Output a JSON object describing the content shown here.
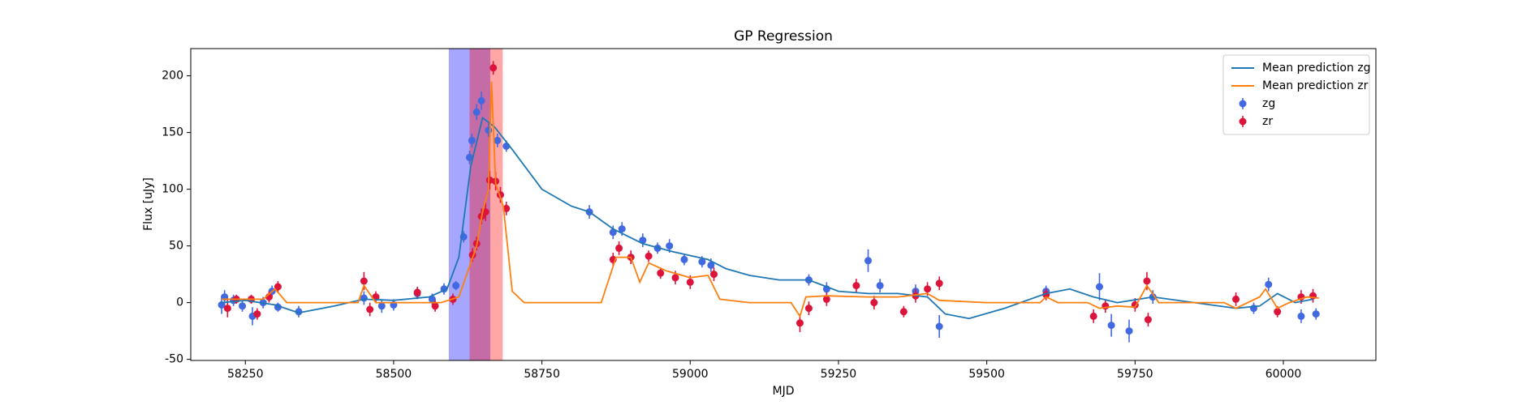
{
  "chart_data": {
    "type": "line",
    "title": "GP Regression",
    "x_label": "MJD",
    "y_label": "Flux [uJy]",
    "xlim": [
      58158,
      60156
    ],
    "ylim": [
      -51,
      224
    ],
    "xticks": [
      58250,
      58500,
      58750,
      59000,
      59250,
      59500,
      59750,
      60000
    ],
    "yticks": [
      -50,
      0,
      50,
      100,
      150,
      200
    ],
    "legend": "upper right",
    "spans": [
      {
        "x": [
          58593,
          58663
        ],
        "color": "#0000ff"
      },
      {
        "x": [
          58628,
          58684
        ],
        "color": "#ff0000"
      }
    ],
    "series": [
      {
        "name": "Mean prediction zg",
        "color": "#1f77b4",
        "kind": "line",
        "x": [
          58210,
          58250,
          58300,
          58340,
          58400,
          58450,
          58500,
          58560,
          58590,
          58610,
          58630,
          58650,
          58670,
          58700,
          58750,
          58800,
          58830,
          58870,
          58920,
          58970,
          59030,
          59060,
          59100,
          59150,
          59200,
          59250,
          59300,
          59350,
          59400,
          59430,
          59470,
          59530,
          59600,
          59640,
          59680,
          59720,
          59780,
          59850,
          59920,
          59960,
          59990,
          60020,
          60050
        ],
        "values": [
          0,
          2,
          -2,
          -9,
          -3,
          3,
          2,
          5,
          12,
          40,
          120,
          163,
          155,
          135,
          100,
          85,
          80,
          65,
          52,
          45,
          38,
          30,
          24,
          20,
          20,
          10,
          8,
          8,
          5,
          -10,
          -14,
          -5,
          8,
          12,
          5,
          0,
          5,
          0,
          -5,
          -3,
          8,
          0,
          3
        ]
      },
      {
        "name": "Mean prediction zr",
        "color": "#ff7f0e",
        "kind": "line",
        "x": [
          58210,
          58280,
          58300,
          58320,
          58440,
          58450,
          58470,
          58580,
          58610,
          58640,
          58650,
          58660,
          58665,
          58672,
          58685,
          58700,
          58720,
          58850,
          58875,
          58900,
          58915,
          58930,
          58960,
          59000,
          59030,
          59050,
          59100,
          59170,
          59185,
          59195,
          59230,
          59300,
          59350,
          59400,
          59420,
          59500,
          59590,
          59600,
          59620,
          59670,
          59690,
          59720,
          59750,
          59770,
          59790,
          59900,
          59920,
          59960,
          59970,
          59990,
          60010,
          60040,
          60060
        ],
        "values": [
          3,
          3,
          12,
          0,
          0,
          15,
          0,
          0,
          5,
          50,
          80,
          100,
          195,
          105,
          85,
          10,
          0,
          0,
          40,
          40,
          18,
          35,
          28,
          22,
          24,
          3,
          0,
          0,
          -12,
          5,
          6,
          5,
          5,
          8,
          2,
          0,
          0,
          5,
          0,
          0,
          -5,
          -3,
          -4,
          15,
          0,
          0,
          -5,
          5,
          12,
          -5,
          0,
          5,
          4
        ]
      },
      {
        "name": "zg",
        "color": "#4169e1",
        "kind": "errorbar",
        "x": [
          58210,
          58215,
          58230,
          58245,
          58262,
          58280,
          58295,
          58305,
          58340,
          58450,
          58480,
          58500,
          58540,
          58565,
          58585,
          58605,
          58618,
          58628,
          58632,
          58640,
          58648,
          58660,
          58675,
          58690,
          58830,
          58870,
          58885,
          58920,
          58945,
          58965,
          58990,
          59020,
          59035,
          59200,
          59230,
          59300,
          59320,
          59380,
          59420,
          59600,
          59690,
          59710,
          59740,
          59780,
          59950,
          59975,
          60030,
          60055
        ],
        "values": [
          -2,
          5,
          2,
          -3,
          -12,
          0,
          10,
          -4,
          -8,
          4,
          -3,
          -2,
          8,
          3,
          12,
          15,
          58,
          128,
          143,
          168,
          178,
          152,
          143,
          138,
          80,
          62,
          65,
          55,
          48,
          50,
          38,
          36,
          33,
          20,
          12,
          37,
          15,
          10,
          -21,
          10,
          14,
          -20,
          -25,
          5,
          -5,
          16,
          -12,
          -10
        ],
        "errors": [
          8,
          6,
          5,
          5,
          8,
          5,
          5,
          4,
          5,
          6,
          6,
          5,
          5,
          5,
          5,
          4,
          5,
          6,
          6,
          7,
          8,
          6,
          6,
          5,
          6,
          6,
          6,
          6,
          5,
          6,
          5,
          5,
          6,
          5,
          6,
          10,
          6,
          6,
          10,
          5,
          12,
          10,
          10,
          6,
          5,
          6,
          6,
          5
        ]
      },
      {
        "name": "zr",
        "color": "#dc143c",
        "kind": "errorbar",
        "x": [
          58220,
          58235,
          58260,
          58270,
          58290,
          58305,
          58450,
          58460,
          58470,
          58540,
          58570,
          58600,
          58633,
          58640,
          58648,
          58655,
          58662,
          58668,
          58672,
          58680,
          58690,
          58870,
          58880,
          58900,
          58930,
          58950,
          58975,
          59000,
          59040,
          59185,
          59200,
          59230,
          59280,
          59310,
          59360,
          59380,
          59400,
          59420,
          59600,
          59680,
          59700,
          59750,
          59770,
          59772,
          59920,
          59990,
          60030,
          60050
        ],
        "values": [
          -5,
          3,
          3,
          -10,
          5,
          14,
          19,
          -6,
          5,
          9,
          -3,
          3,
          42,
          52,
          76,
          80,
          108,
          207,
          107,
          95,
          83,
          38,
          48,
          40,
          41,
          26,
          22,
          18,
          25,
          -18,
          -5,
          3,
          15,
          0,
          -8,
          6,
          12,
          17,
          7,
          -12,
          -3,
          -2,
          19,
          -15,
          3,
          -8,
          5,
          6
        ],
        "errors": [
          8,
          4,
          4,
          5,
          5,
          5,
          8,
          6,
          5,
          5,
          5,
          5,
          6,
          6,
          7,
          8,
          8,
          6,
          8,
          7,
          6,
          6,
          6,
          6,
          5,
          5,
          6,
          6,
          6,
          8,
          6,
          6,
          6,
          6,
          5,
          6,
          6,
          6,
          5,
          6,
          6,
          6,
          8,
          6,
          6,
          5,
          6,
          6
        ]
      }
    ]
  }
}
